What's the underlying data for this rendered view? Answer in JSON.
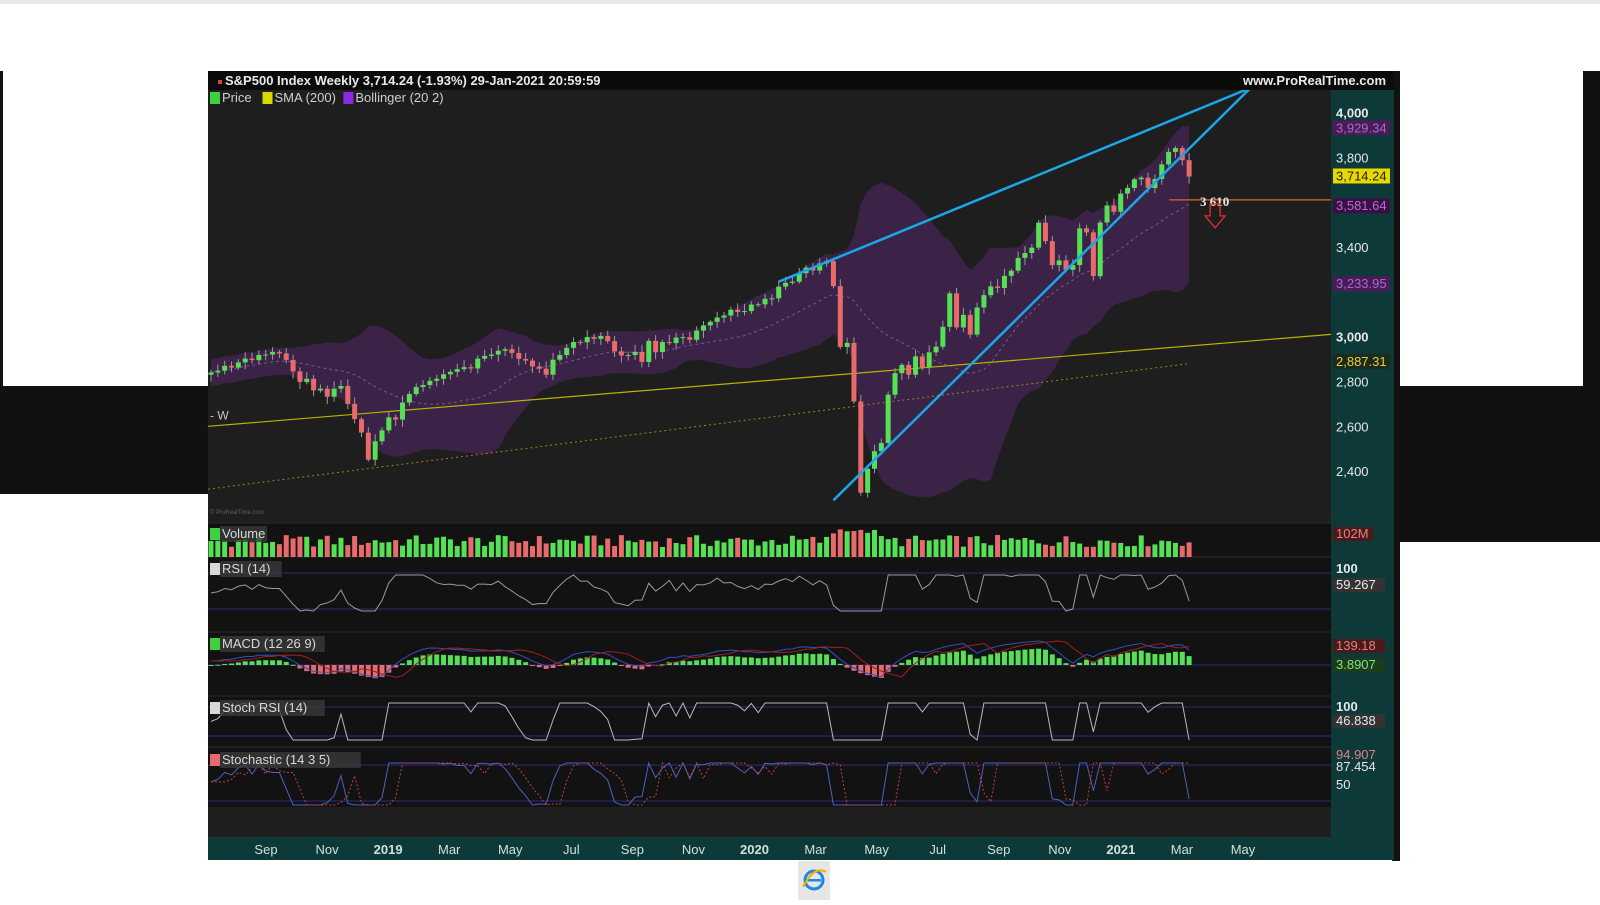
{
  "window": {
    "title": "S&P500 Index Weekly 3,714.24 (-1.93%) 29-Jan-2021 20:59:59",
    "site": "www.ProRealTime.com",
    "watermark": "© ProRealTime.com"
  },
  "colors": {
    "up": "#55e055",
    "down": "#e86a6a",
    "sma": "#b8b400",
    "bollinger": "#6a2d8c",
    "trendline": "#1aa7e8",
    "support": "#e4622a",
    "axis_panel": "#0d3a38",
    "oscillator_line": "#9a9a9a"
  },
  "chart_data": [
    {
      "name": "price",
      "type": "candlestick",
      "legend": [
        {
          "label": "Price",
          "color": "#3fcf3f"
        },
        {
          "label": "SMA (200)",
          "color": "#d8d800"
        },
        {
          "label": "Bollinger (20 2)",
          "color": "#8a2be2"
        }
      ],
      "x_ticks": [
        "Sep",
        "Nov",
        "2019",
        "Mar",
        "May",
        "Jul",
        "Sep",
        "Nov",
        "2020",
        "Mar",
        "May",
        "Jul",
        "Sep",
        "Nov",
        "2021",
        "Mar",
        "May"
      ],
      "x_ticks_bold": [
        "2019",
        "2020",
        "2021"
      ],
      "y_ticks": [
        "4,000",
        "3,800",
        "3,400",
        "3,000",
        "2,800",
        "2,600",
        "2,400"
      ],
      "y_range": [
        2200,
        4100
      ],
      "price_labels": [
        {
          "text": "3,929.34",
          "value": 3929.34,
          "kind": "bollinger-upper"
        },
        {
          "text": "3,714.24",
          "value": 3714.24,
          "kind": "last"
        },
        {
          "text": "3,581.64",
          "value": 3581.64,
          "kind": "bollinger-mid"
        },
        {
          "text": "3,233.95",
          "value": 3233.95,
          "kind": "bollinger-lower"
        },
        {
          "text": "2,887.31",
          "value": 2887.31,
          "kind": "sma"
        }
      ],
      "left_marker": "- W",
      "weekly_closes": [
        2840,
        2848,
        2870,
        2862,
        2885,
        2902,
        2895,
        2918,
        2920,
        2932,
        2925,
        2896,
        2845,
        2798,
        2812,
        2760,
        2768,
        2732,
        2768,
        2780,
        2700,
        2632,
        2572,
        2451,
        2533,
        2582,
        2640,
        2630,
        2706,
        2744,
        2775,
        2784,
        2803,
        2812,
        2832,
        2843,
        2855,
        2864,
        2858,
        2902,
        2914,
        2920,
        2937,
        2944,
        2927,
        2901,
        2893,
        2867,
        2857,
        2830,
        2897,
        2918,
        2950,
        2976,
        2975,
        2998,
        2990,
        3003,
        2980,
        2934,
        2916,
        2918,
        2932,
        2887,
        2981,
        2931,
        2976,
        2971,
        2996,
        2998,
        2986,
        3027,
        3050,
        3066,
        3085,
        3094,
        3120,
        3110,
        3114,
        3143,
        3144,
        3169,
        3171,
        3223,
        3240,
        3245,
        3283,
        3308,
        3295,
        3327,
        3337,
        3225,
        2954,
        2972,
        2711,
        2304,
        2411,
        2489,
        2526,
        2741,
        2837,
        2874,
        2830,
        2912,
        2863,
        2930,
        2955,
        3044,
        3193,
        3041,
        3097,
        3009,
        3130,
        3185,
        3224,
        3217,
        3271,
        3294,
        3351,
        3373,
        3397,
        3508,
        3426,
        3319,
        3340,
        3298,
        3319,
        3483,
        3465,
        3270,
        3509,
        3585,
        3557,
        3638,
        3663,
        3702,
        3709,
        3663,
        3703,
        3768,
        3824,
        3841,
        3787,
        3714
      ]
    },
    {
      "name": "volume",
      "type": "bar",
      "label": "Volume",
      "value_label": "102M"
    },
    {
      "name": "rsi",
      "type": "line",
      "label": "RSI (14)",
      "y_ticks": [
        "100"
      ],
      "value_label": "59.267"
    },
    {
      "name": "macd",
      "type": "histogram",
      "label": "MACD (12 26 9)",
      "value_labels": [
        "139.18",
        "3.8907"
      ]
    },
    {
      "name": "stoch_rsi",
      "type": "line",
      "label": "Stoch RSI (14)",
      "y_ticks": [
        "100"
      ],
      "value_label": "46.838"
    },
    {
      "name": "stochastic",
      "type": "line",
      "label": "Stochastic (14 3 5)",
      "y_ticks": [
        "50"
      ],
      "value_labels": [
        "94.907",
        "87.454"
      ]
    }
  ],
  "annotations": {
    "support_value": 3610,
    "support_label": "3 610",
    "arrow": "down-arrow"
  },
  "footer": {
    "icon": "ie-icon"
  }
}
